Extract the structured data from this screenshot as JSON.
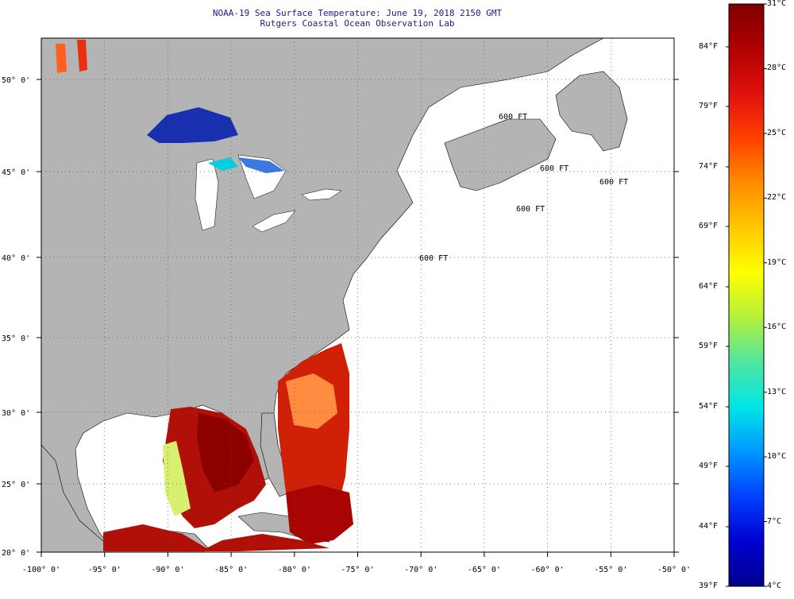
{
  "title": {
    "line1": "NOAA-19 Sea Surface Temperature:  June 19, 2018 2150 GMT",
    "line2": "Rutgers Coastal Ocean Observation Lab"
  },
  "axes": {
    "lon_ticks": [
      "-100° 0'",
      "-95° 0'",
      "-90° 0'",
      "-85° 0'",
      "-80° 0'",
      "-75° 0'",
      "-70° 0'",
      "-65° 0'",
      "-60° 0'",
      "-55° 0'",
      "-50° 0'"
    ],
    "lat_ticks": [
      "50° 0'",
      "45° 0'",
      "40° 0'",
      "35° 0'",
      "30° 0'",
      "25° 0'",
      "20° 0'"
    ]
  },
  "contour_label": "600 FT",
  "colorbar": {
    "celsius_labels": [
      "31°C",
      "28°C",
      "25°C",
      "22°C",
      "19°C",
      "16°C",
      "13°C",
      "10°C",
      "7°C",
      "4°C"
    ],
    "fahrenheit_labels": [
      "84°F",
      "79°F",
      "74°F",
      "69°F",
      "64°F",
      "59°F",
      "54°F",
      "49°F",
      "44°F",
      "39°F"
    ],
    "colors": [
      "#7f0000",
      "#b00000",
      "#e01010",
      "#ff4000",
      "#ff8c00",
      "#ffc800",
      "#ffff00",
      "#b4f03c",
      "#50e6a0",
      "#00e6e6",
      "#0096ff",
      "#0040ff",
      "#0000d0",
      "#00008c"
    ]
  },
  "colors": {
    "land": "#b4b4b4",
    "water": "#ffffff",
    "title_text": "#1a1a8c"
  }
}
